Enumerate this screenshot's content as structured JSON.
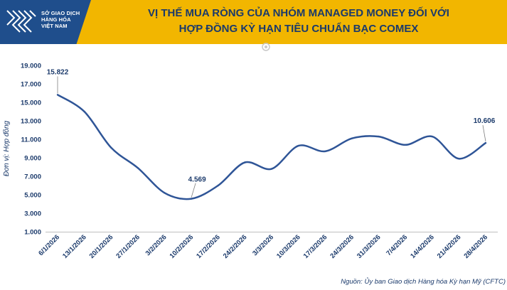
{
  "header": {
    "logo_lines": [
      "SỞ GIAO DỊCH",
      "HÀNG HÓA",
      "VIỆT NAM"
    ],
    "title_line1": "VỊ THẾ MUA RÒNG CỦA NHÓM MANAGED MONEY ĐỐI VỚI",
    "title_line2": "HỢP ĐỒNG KỲ HẠN TIÊU CHUẨN BẠC COMEX"
  },
  "source": "Nguồn: Ủy ban Giao dịch Hàng hóa Kỳ hạn Mỹ (CFTC)",
  "colors": {
    "header_bg": "#f2b600",
    "title": "#1b3a6b",
    "line": "#2f5597",
    "logo_bg": "#1f4e8c"
  },
  "chart_data": {
    "type": "line",
    "title": "VỊ THẾ MUA RÒNG CỦA NHÓM MANAGED MONEY ĐỐI VỚI HỢP ĐỒNG KỲ HẠN TIÊU CHUẨN BẠC COMEX",
    "ylabel": "Đơn vị: Hợp đồng",
    "xlabel": "",
    "ylim": [
      1000,
      19000
    ],
    "yticks": [
      1000,
      3000,
      5000,
      7000,
      9000,
      11000,
      13000,
      15000,
      17000,
      19000
    ],
    "ytick_labels": [
      "1.000",
      "3.000",
      "5.000",
      "7.000",
      "9.000",
      "11.000",
      "13.000",
      "15.000",
      "17.000",
      "19.000"
    ],
    "categories": [
      "6/1/2026",
      "13/1/2026",
      "20/1/2026",
      "27/1/2026",
      "3/2/2026",
      "10/2/2026",
      "17/2/2026",
      "24/2/2026",
      "3/3/2026",
      "10/3/2026",
      "17/3/2026",
      "24/3/2026",
      "31/3/2026",
      "7/4/2026",
      "14/4/2026",
      "21/4/2026",
      "28/4/2026"
    ],
    "values": [
      15822,
      14000,
      10100,
      7900,
      5200,
      4569,
      6000,
      8500,
      7800,
      10300,
      9700,
      11100,
      11300,
      10400,
      11300,
      8900,
      10606
    ],
    "data_labels": [
      {
        "index": 0,
        "text": "15.822"
      },
      {
        "index": 5,
        "text": "4.569"
      },
      {
        "index": 16,
        "text": "10.606"
      }
    ],
    "grid": false,
    "smooth": true
  }
}
